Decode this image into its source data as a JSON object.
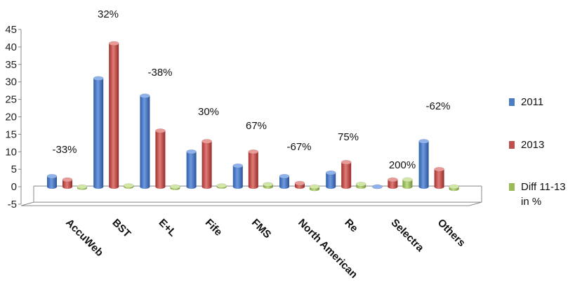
{
  "chart_data": {
    "type": "bar",
    "title": "",
    "xlabel": "",
    "ylabel": "",
    "ylim": [
      -5,
      45
    ],
    "yticks": [
      -5,
      0,
      5,
      10,
      15,
      20,
      25,
      30,
      35,
      40,
      45
    ],
    "categories": [
      "AccuWeb",
      "BST",
      "E+L",
      "Fife",
      "FMS",
      "North American",
      "Re",
      "Selectra",
      "Others"
    ],
    "series": [
      {
        "name": "2011",
        "color": "#4a7cc4",
        "values": [
          3,
          31,
          26,
          10,
          6,
          3,
          4,
          0,
          13
        ]
      },
      {
        "name": "2013",
        "color": "#c0504d",
        "values": [
          2,
          41,
          16,
          13,
          10,
          1,
          7,
          2,
          5
        ]
      },
      {
        "name": "Diff 11-13 in %",
        "color": "#9bbb59",
        "values": [
          -0.33,
          0.32,
          -0.38,
          0.3,
          0.67,
          -0.67,
          0.75,
          2.0,
          -0.62
        ]
      }
    ],
    "data_labels": [
      "-33%",
      "32%",
      "-38%",
      "30%",
      "67%",
      "-67%",
      "75%",
      "200%",
      "-62%"
    ],
    "legend": {
      "placement": "right",
      "entries": [
        {
          "label": "2011",
          "color": "#4a7cc4"
        },
        {
          "label": "2013",
          "color": "#c0504d"
        },
        {
          "label": "Diff 11-13",
          "label_line2": "in %",
          "color": "#9bbb59"
        }
      ]
    },
    "style": "3d-clustered-column"
  }
}
